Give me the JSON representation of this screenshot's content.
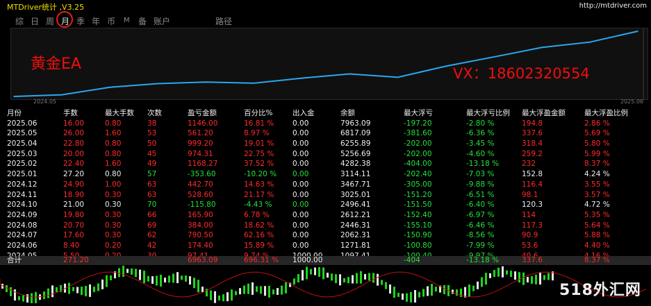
{
  "window": {
    "title": "MTDriver统计 ,V3.25",
    "url": "http://mtdriver.com"
  },
  "tabs": [
    "综",
    "日",
    "周",
    "月",
    "季",
    "年",
    "币",
    "M",
    "备",
    "账户",
    "路径"
  ],
  "overlay": {
    "ea": "黄金EA",
    "vx": "VX：18602320554"
  },
  "chart": {
    "x_start": "2024.05",
    "x_end": "2025.06"
  },
  "chart_data": {
    "type": "line",
    "x": [
      "2024.05",
      "2024.06",
      "2024.07",
      "2024.08",
      "2024.09",
      "2024.10",
      "2024.11",
      "2024.12",
      "2025.01",
      "2025.02",
      "2025.03",
      "2025.04",
      "2025.05",
      "2025.06"
    ],
    "values": [
      1097.41,
      1271.81,
      2062.31,
      2446.31,
      2612.21,
      2496.41,
      3025.01,
      3467.71,
      3114.11,
      4282.38,
      5256.69,
      6255.89,
      6817.09,
      7963.09
    ],
    "color": "#2aa8f0"
  },
  "table": {
    "headers": [
      "月份",
      "手数",
      "最大手数",
      "次数",
      "盈亏金额",
      "百分比%",
      "出入金",
      "余额",
      "最大浮亏",
      "最大浮亏比例",
      "最大浮盈金额",
      "最大浮盈比例"
    ],
    "rows": [
      [
        "2025.06",
        "16.00",
        "0.80",
        "38",
        "1146.00",
        "16.81 %",
        "0.00",
        "7963.09",
        "-197.20",
        "-2.80 %",
        "194.8",
        "2.86 %"
      ],
      [
        "2025.05",
        "26.00",
        "1.60",
        "53",
        "561.20",
        "8.97 %",
        "0.00",
        "6817.09",
        "-381.60",
        "-6.36 %",
        "337.6",
        "5.69 %"
      ],
      [
        "2025.04",
        "22.80",
        "0.80",
        "50",
        "999.20",
        "19.01 %",
        "0.00",
        "6255.89",
        "-202.00",
        "-3.45 %",
        "318.4",
        "5.80 %"
      ],
      [
        "2025.03",
        "20.00",
        "0.80",
        "45",
        "974.31",
        "22.75 %",
        "0.00",
        "5256.69",
        "-202.00",
        "-4.60 %",
        "259.2",
        "5.99 %"
      ],
      [
        "2025.02",
        "22.40",
        "1.60",
        "49",
        "1168.27",
        "37.52 %",
        "0.00",
        "4282.38",
        "-404.00",
        "-13.18 %",
        "232",
        "8.37 %"
      ],
      [
        "2025.01",
        "27.20",
        "0.80",
        "57",
        "-353.60",
        "-10.20 %",
        "0.00",
        "3114.11",
        "-202.40",
        "-7.03 %",
        "152.8",
        "4.24 %"
      ],
      [
        "2024.12",
        "24.90",
        "1.00",
        "63",
        "442.70",
        "14.63 %",
        "0.00",
        "3467.71",
        "-305.00",
        "-9.88 %",
        "116.4",
        "3.55 %"
      ],
      [
        "2024.11",
        "18.90",
        "0.30",
        "63",
        "528.60",
        "21.17 %",
        "0.00",
        "3025.01",
        "-151.20",
        "-6.51 %",
        "98.1",
        "3.57 %"
      ],
      [
        "2024.10",
        "21.00",
        "0.30",
        "70",
        "-115.80",
        "-4.43 %",
        "0.00",
        "2496.41",
        "-151.50",
        "-6.40 %",
        "120.3",
        "4.72 %"
      ],
      [
        "2024.09",
        "19.80",
        "0.30",
        "66",
        "165.90",
        "6.78 %",
        "0.00",
        "2612.21",
        "-152.40",
        "-6.97 %",
        "114",
        "5.35 %"
      ],
      [
        "2024.08",
        "20.70",
        "0.30",
        "69",
        "384.00",
        "18.62 %",
        "0.00",
        "2446.31",
        "-155.10",
        "-6.46 %",
        "117.3",
        "5.64 %"
      ],
      [
        "2024.07",
        "17.60",
        "0.30",
        "62",
        "790.50",
        "62.16 %",
        "0.00",
        "2062.31",
        "-150.90",
        "-8.56 %",
        "90.9",
        "5.88 %"
      ],
      [
        "2024.06",
        "8.40",
        "0.20",
        "42",
        "174.40",
        "15.89 %",
        "0.00",
        "1271.81",
        "-100.80",
        "-7.99 %",
        "53.6",
        "4.40 %"
      ],
      [
        "2024.05",
        "5.50",
        "0.20",
        "30",
        "97.41",
        "9.74 %",
        "1000.00",
        "1097.41",
        "-100.40",
        "-9.97 %",
        "40.6",
        "4.16 %"
      ]
    ],
    "row_kind": [
      "neg",
      "neg",
      "neg",
      "neg",
      "neg",
      "pos",
      "neg",
      "neg",
      "pos",
      "neg",
      "neg",
      "neg",
      "neg",
      "neg"
    ],
    "total": [
      "合计",
      "271.20",
      "",
      "",
      "6963.09",
      "696.31 %",
      "1000.00",
      "",
      "-404",
      "-13.18 %",
      "337.6",
      "8.37 %"
    ]
  },
  "watermark": "518外汇网"
}
